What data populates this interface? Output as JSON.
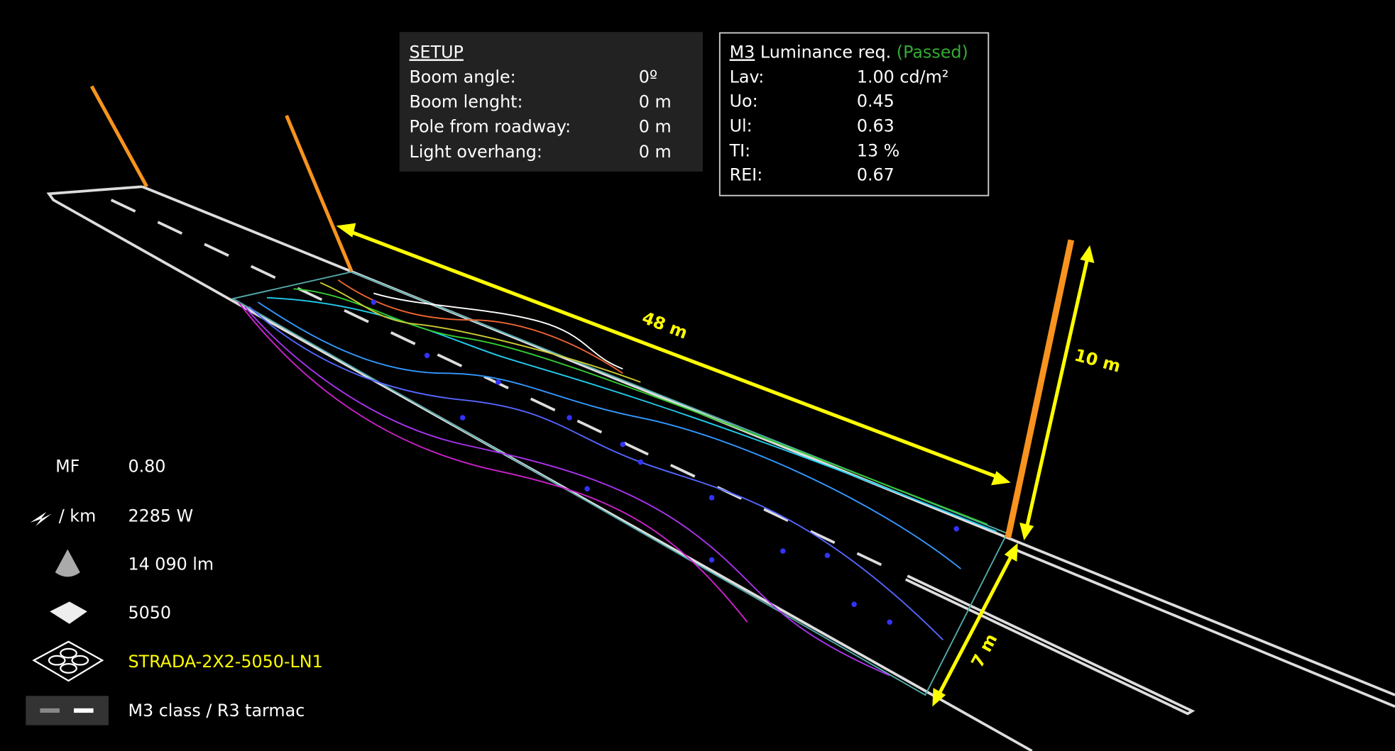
{
  "setup": {
    "title": "SETUP",
    "rows": [
      {
        "label": "Boom angle:",
        "value": "0º"
      },
      {
        "label": "Boom lenght:",
        "value": "0 m"
      },
      {
        "label": "Pole from roadway:",
        "value": "0 m"
      },
      {
        "label": "Light overhang:",
        "value": "0 m"
      }
    ]
  },
  "luminance": {
    "class": "M3",
    "title": "Luminance req.",
    "status": "(Passed)",
    "rows": [
      {
        "label": "Lav:",
        "value": "1.00 cd/m²"
      },
      {
        "label": "Uo:",
        "value": "0.45"
      },
      {
        "label": "Ul:",
        "value": "0.63"
      },
      {
        "label": "TI:",
        "value": "13 %"
      },
      {
        "label": "REI:",
        "value": "0.67"
      }
    ]
  },
  "dimensions": {
    "spacing": "48 m",
    "height": "10 m",
    "width": "7 m"
  },
  "legend": [
    {
      "label": "MF",
      "value": "0.80"
    },
    {
      "label": "/ km",
      "value": "2285 W"
    },
    {
      "value": "14 090 lm"
    },
    {
      "value": "5050"
    },
    {
      "value": "STRADA-2X2-5050-LN1"
    },
    {
      "value": "M3 class  / R3 tarmac"
    }
  ]
}
